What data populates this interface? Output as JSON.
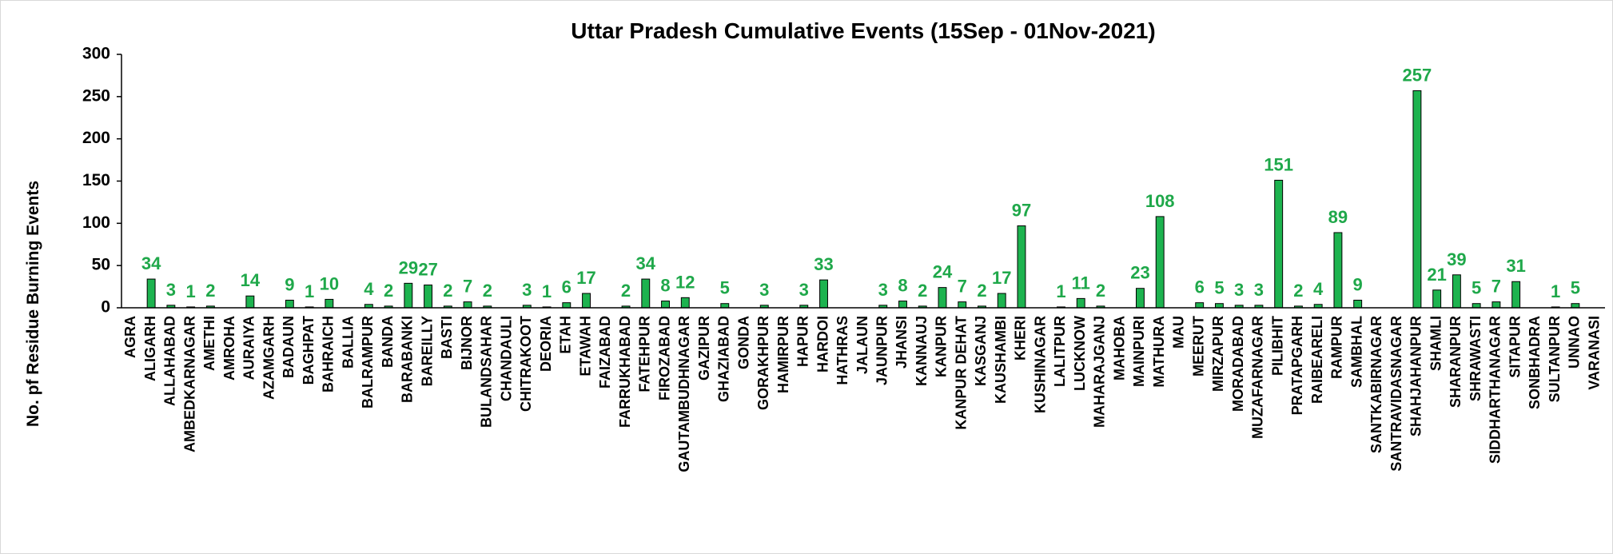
{
  "chart_data": {
    "type": "bar",
    "title": "Uttar Pradesh Cumulative Events (15Sep - 01Nov-2021)",
    "y_label": "No. pf Residue Burning Events",
    "color": "#1db34f",
    "label_color": "#1fa84a",
    "categories": [
      "AGRA",
      "ALIGARH",
      "ALLAHABAD",
      "AMBEDKARNAGAR",
      "AMETHI",
      "AMROHA",
      "AURAIYA",
      "AZAMGARH",
      "BADAUN",
      "BAGHPAT",
      "BAHRAICH",
      "BALLIA",
      "BALRAMPUR",
      "BANDA",
      "BARABANKI",
      "BAREILLY",
      "BASTI",
      "BIJNOR",
      "BULANDSAHAR",
      "CHANDAULI",
      "CHITRAKOOT",
      "DEORIA",
      "ETAH",
      "ETAWAH",
      "FAIZABAD",
      "FARRUKHABAD",
      "FATEHPUR",
      "FIROZABAD",
      "GAUTAMBUDHNAGAR",
      "GAZIPUR",
      "GHAZIABAD",
      "GONDA",
      "GORAKHPUR",
      "HAMIRPUR",
      "HAPUR",
      "HARDOI",
      "HATHRAS",
      "JALAUN",
      "JAUNPUR",
      "JHANSI",
      "KANNAUJ",
      "KANPUR",
      "KANPUR DEHAT",
      "KASGANJ",
      "KAUSHAMBI",
      "KHERI",
      "KUSHINAGAR",
      "LALITPUR",
      "LUCKNOW",
      "MAHARAJGANJ",
      "MAHOBA",
      "MAINPURI",
      "MATHURA",
      "MAU",
      "MEERUT",
      "MIRZAPUR",
      "MORADABAD",
      "MUZAFARNAGAR",
      "PILIBHIT",
      "PRATAPGARH",
      "RAIBEARELI",
      "RAMPUR",
      "SAMBHAL",
      "SANTKABIRNAGAR",
      "SANTRAVIDASNAGAR",
      "SHAHJAHANPUR",
      "SHAMLI",
      "SHARANPUR",
      "SHRAWASTI",
      "SIDDHARTHANAGAR",
      "SITAPUR",
      "SONBHADRA",
      "SULTANPUR",
      "UNNAO",
      "VARANASI"
    ],
    "values": [
      0,
      34,
      3,
      1,
      2,
      0,
      14,
      0,
      9,
      1,
      10,
      0,
      4,
      2,
      29,
      27,
      2,
      7,
      2,
      0,
      3,
      1,
      6,
      17,
      0,
      2,
      34,
      8,
      12,
      0,
      5,
      0,
      3,
      0,
      3,
      33,
      0,
      0,
      3,
      8,
      2,
      24,
      7,
      2,
      17,
      97,
      0,
      1,
      11,
      2,
      0,
      23,
      108,
      0,
      6,
      5,
      3,
      3,
      151,
      2,
      4,
      89,
      9,
      0,
      0,
      257,
      21,
      39,
      5,
      7,
      31,
      0,
      1,
      5,
      0
    ],
    "ylim": [
      0,
      300
    ],
    "yticks": [
      0,
      50,
      100,
      150,
      200,
      250,
      300
    ],
    "grid": false
  }
}
